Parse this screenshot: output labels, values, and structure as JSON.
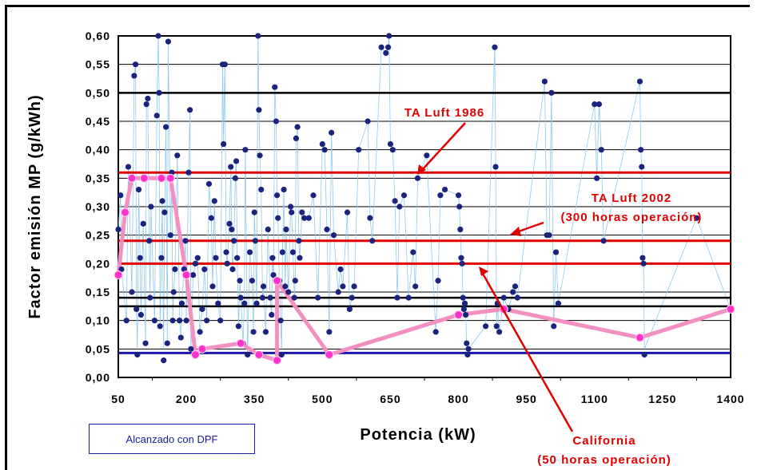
{
  "chart_data": {
    "type": "scatter",
    "xlabel": "Potencia (kW)",
    "ylabel": "Factor emisión MP (g/kWh)",
    "xlim": [
      50,
      1400
    ],
    "ylim": [
      0,
      0.6
    ],
    "x_tick_labels": [
      "50",
      "200",
      "350",
      "500",
      "650",
      "800",
      "950",
      "1100",
      "1250",
      "1400"
    ],
    "x_tick_labels_minor": [
      "125",
      "275",
      "425",
      "575",
      "725",
      "875",
      "1025",
      "1175",
      "1325"
    ],
    "y_tick_labels": [
      "0,00",
      "0,05",
      "0,10",
      "0,15",
      "0,20",
      "0,25",
      "0,30",
      "0,35",
      "0,40",
      "0,45",
      "0,50",
      "0,55",
      "0,60"
    ],
    "grid": "horizontal",
    "reference_lines": [
      {
        "label": "TA Luft 1986",
        "y": 0.36,
        "color": "#e00000"
      },
      {
        "label": "TA Luft 2002",
        "sublabel": "(300 horas operación)",
        "y": 0.24,
        "color": "#e00000"
      },
      {
        "label": "California",
        "sublabel": "(50 horas operación)",
        "y": 0.2,
        "color": "#e00000"
      },
      {
        "label": "",
        "y": 0.5,
        "color": "#000000"
      },
      {
        "label": "",
        "y": 0.14,
        "color": "#000000"
      },
      {
        "label": "",
        "y": 0.125,
        "color": "#000000"
      },
      {
        "label": "Alcanzado con DPF",
        "y": 0.043,
        "color": "#1a1aa6"
      }
    ],
    "series": [
      {
        "marker_color": "#1a237e",
        "points": [
          [
            50,
            0.26
          ],
          [
            55,
            0.32
          ],
          [
            57,
            0.19
          ],
          [
            68,
            0.1
          ],
          [
            72,
            0.37
          ],
          [
            80,
            0.15
          ],
          [
            85,
            0.53
          ],
          [
            88,
            0.55
          ],
          [
            90,
            0.12
          ],
          [
            92,
            0.04
          ],
          [
            95,
            0.33
          ],
          [
            98,
            0.21
          ],
          [
            100,
            0.11
          ],
          [
            105,
            0.27
          ],
          [
            110,
            0.06
          ],
          [
            112,
            0.48
          ],
          [
            115,
            0.49
          ],
          [
            118,
            0.24
          ],
          [
            120,
            0.14
          ],
          [
            122,
            0.3
          ],
          [
            130,
            0.1
          ],
          [
            135,
            0.46
          ],
          [
            138,
            0.6
          ],
          [
            140,
            0.5
          ],
          [
            142,
            0.09
          ],
          [
            145,
            0.21
          ],
          [
            147,
            0.31
          ],
          [
            150,
            0.03
          ],
          [
            152,
            0.29
          ],
          [
            155,
            0.44
          ],
          [
            158,
            0.06
          ],
          [
            160,
            0.59
          ],
          [
            165,
            0.25
          ],
          [
            168,
            0.36
          ],
          [
            170,
            0.1
          ],
          [
            172,
            0.15
          ],
          [
            175,
            0.19
          ],
          [
            180,
            0.39
          ],
          [
            185,
            0.1
          ],
          [
            188,
            0.07
          ],
          [
            190,
            0.13
          ],
          [
            195,
            0.19
          ],
          [
            198,
            0.24
          ],
          [
            200,
            0.1
          ],
          [
            205,
            0.36
          ],
          [
            208,
            0.47
          ],
          [
            210,
            0.05
          ],
          [
            215,
            0.18
          ],
          [
            220,
            0.2
          ],
          [
            225,
            0.21
          ],
          [
            230,
            0.08
          ],
          [
            235,
            0.12
          ],
          [
            240,
            0.19
          ],
          [
            245,
            0.1
          ],
          [
            250,
            0.34
          ],
          [
            255,
            0.28
          ],
          [
            258,
            0.16
          ],
          [
            262,
            0.31
          ],
          [
            265,
            0.21
          ],
          [
            270,
            0.13
          ],
          [
            275,
            0.1
          ],
          [
            280,
            0.55
          ],
          [
            282,
            0.41
          ],
          [
            285,
            0.55
          ],
          [
            288,
            0.22
          ],
          [
            290,
            0.2
          ],
          [
            295,
            0.27
          ],
          [
            298,
            0.37
          ],
          [
            300,
            0.26
          ],
          [
            302,
            0.19
          ],
          [
            305,
            0.24
          ],
          [
            308,
            0.35
          ],
          [
            310,
            0.38
          ],
          [
            312,
            0.21
          ],
          [
            315,
            0.09
          ],
          [
            318,
            0.17
          ],
          [
            320,
            0.14
          ],
          [
            325,
            0.06
          ],
          [
            328,
            0.13
          ],
          [
            330,
            0.4
          ],
          [
            335,
            0.04
          ],
          [
            340,
            0.22
          ],
          [
            345,
            0.17
          ],
          [
            348,
            0.08
          ],
          [
            350,
            0.29
          ],
          [
            352,
            0.24
          ],
          [
            355,
            0.13
          ],
          [
            358,
            0.6
          ],
          [
            360,
            0.47
          ],
          [
            362,
            0.39
          ],
          [
            365,
            0.33
          ],
          [
            368,
            0.14
          ],
          [
            370,
            0.16
          ],
          [
            375,
            0.08
          ],
          [
            380,
            0.26
          ],
          [
            385,
            0.14
          ],
          [
            388,
            0.11
          ],
          [
            390,
            0.21
          ],
          [
            392,
            0.18
          ],
          [
            395,
            0.51
          ],
          [
            398,
            0.45
          ],
          [
            400,
            0.32
          ],
          [
            402,
            0.28
          ],
          [
            405,
            0.17
          ],
          [
            408,
            0.1
          ],
          [
            410,
            0.04
          ],
          [
            412,
            0.22
          ],
          [
            415,
            0.33
          ],
          [
            418,
            0.16
          ],
          [
            420,
            0.26
          ],
          [
            425,
            0.15
          ],
          [
            430,
            0.3
          ],
          [
            432,
            0.29
          ],
          [
            435,
            0.22
          ],
          [
            438,
            0.14
          ],
          [
            440,
            0.17
          ],
          [
            442,
            0.42
          ],
          [
            445,
            0.44
          ],
          [
            448,
            0.24
          ],
          [
            450,
            0.21
          ],
          [
            455,
            0.29
          ],
          [
            460,
            0.28
          ],
          [
            470,
            0.28
          ],
          [
            480,
            0.32
          ],
          [
            490,
            0.14
          ],
          [
            500,
            0.41
          ],
          [
            505,
            0.4
          ],
          [
            510,
            0.26
          ],
          [
            515,
            0.08
          ],
          [
            520,
            0.43
          ],
          [
            525,
            0.25
          ],
          [
            535,
            0.15
          ],
          [
            540,
            0.19
          ],
          [
            545,
            0.16
          ],
          [
            555,
            0.29
          ],
          [
            560,
            0.12
          ],
          [
            565,
            0.14
          ],
          [
            570,
            0.16
          ],
          [
            580,
            0.4
          ],
          [
            600,
            0.45
          ],
          [
            605,
            0.28
          ],
          [
            610,
            0.24
          ],
          [
            630,
            0.58
          ],
          [
            640,
            0.57
          ],
          [
            645,
            0.58
          ],
          [
            647,
            0.6
          ],
          [
            650,
            0.41
          ],
          [
            655,
            0.4
          ],
          [
            660,
            0.31
          ],
          [
            665,
            0.14
          ],
          [
            670,
            0.3
          ],
          [
            680,
            0.32
          ],
          [
            690,
            0.14
          ],
          [
            700,
            0.22
          ],
          [
            705,
            0.16
          ],
          [
            710,
            0.35
          ],
          [
            730,
            0.39
          ],
          [
            750,
            0.08
          ],
          [
            755,
            0.17
          ],
          [
            760,
            0.32
          ],
          [
            770,
            0.33
          ],
          [
            800,
            0.32
          ],
          [
            802,
            0.3
          ],
          [
            804,
            0.26
          ],
          [
            806,
            0.21
          ],
          [
            808,
            0.2
          ],
          [
            810,
            0.14
          ],
          [
            812,
            0.12
          ],
          [
            814,
            0.13
          ],
          [
            816,
            0.11
          ],
          [
            818,
            0.06
          ],
          [
            820,
            0.04
          ],
          [
            822,
            0.05
          ],
          [
            860,
            0.09
          ],
          [
            880,
            0.58
          ],
          [
            882,
            0.37
          ],
          [
            884,
            0.09
          ],
          [
            886,
            0.13
          ],
          [
            890,
            0.08
          ],
          [
            900,
            0.14
          ],
          [
            910,
            0.12
          ],
          [
            920,
            0.15
          ],
          [
            925,
            0.16
          ],
          [
            930,
            0.14
          ],
          [
            990,
            0.52
          ],
          [
            995,
            0.25
          ],
          [
            1000,
            0.25
          ],
          [
            1005,
            0.5
          ],
          [
            1010,
            0.09
          ],
          [
            1015,
            0.22
          ],
          [
            1020,
            0.13
          ],
          [
            1100,
            0.48
          ],
          [
            1105,
            0.35
          ],
          [
            1110,
            0.48
          ],
          [
            1115,
            0.4
          ],
          [
            1120,
            0.24
          ],
          [
            1200,
            0.52
          ],
          [
            1202,
            0.4
          ],
          [
            1204,
            0.37
          ],
          [
            1206,
            0.21
          ],
          [
            1208,
            0.2
          ],
          [
            1210,
            0.04
          ],
          [
            1325,
            0.28
          ],
          [
            1400,
            0.12
          ]
        ]
      },
      {
        "marker_color": "#ff33cc",
        "line_color": "#f48fc1",
        "points": [
          [
            50,
            0.18
          ],
          [
            65,
            0.29
          ],
          [
            80,
            0.35
          ],
          [
            107,
            0.35
          ],
          [
            145,
            0.35
          ],
          [
            165,
            0.35
          ],
          [
            200,
            0.18
          ],
          [
            220,
            0.04
          ],
          [
            235,
            0.05
          ],
          [
            320,
            0.06
          ],
          [
            360,
            0.04
          ],
          [
            400,
            0.03
          ],
          [
            400,
            0.17
          ],
          [
            515,
            0.04
          ],
          [
            800,
            0.11
          ],
          [
            900,
            0.12
          ],
          [
            1200,
            0.07
          ],
          [
            1400,
            0.12
          ]
        ]
      }
    ]
  }
}
